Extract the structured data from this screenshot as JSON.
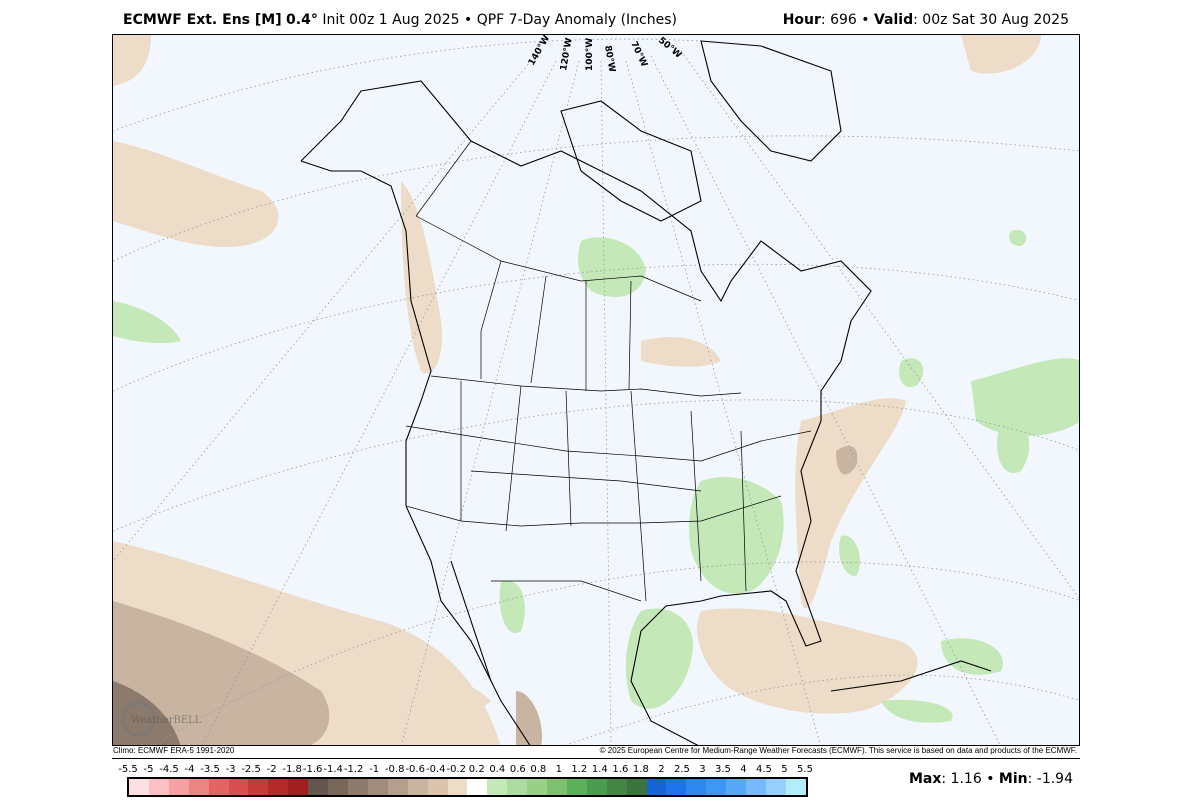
{
  "header": {
    "model": "ECMWF Ext. Ens [M]",
    "resolution": "0.4°",
    "init": "Init 00z 1 Aug 2025",
    "separator": "•",
    "product": "QPF 7-Day Anomaly (Inches)",
    "hour_label": "Hour",
    "hour_value": ": 696",
    "valid_label": "Valid",
    "valid_value": ": 00z Sat 30 Aug 2025"
  },
  "map": {
    "background_color": "#f2f7fe",
    "longitude_labels": [
      "140°W",
      "120°W",
      "100°W",
      "80°W",
      "70°W",
      "50°W"
    ],
    "watermark": "WeatherBELL"
  },
  "footer": {
    "climo": "Climo: ECMWF ERA-5 1991-2020",
    "copyright": "© 2025 European Centre for Medium-Range Weather Forecasts (ECMWF). This service is based on data and products of the ECMWF.",
    "max_label": "Max",
    "max_value": ": 1.16",
    "min_label": "Min",
    "min_value": ": -1.94"
  },
  "colorbar": {
    "labels": [
      "-5.5",
      "-5",
      "-4.5",
      "-4",
      "-3.5",
      "-3",
      "-2.5",
      "-2",
      "-1.8",
      "-1.6",
      "-1.4",
      "-1.2",
      "-1",
      "-0.8",
      "-0.6",
      "-0.4",
      "-0.2",
      "0.2",
      "0.4",
      "0.6",
      "0.8",
      "1",
      "1.2",
      "1.4",
      "1.6",
      "1.8",
      "2",
      "2.5",
      "3",
      "3.5",
      "4",
      "4.5",
      "5",
      "5.5"
    ],
    "colors": [
      "#fde0e4",
      "#fbc0c5",
      "#f4a0a4",
      "#ec8484",
      "#e46464",
      "#d84e4e",
      "#c83a3a",
      "#b42a2a",
      "#a01e1e",
      "#64564e",
      "#78685c",
      "#8c7a6c",
      "#a08c7c",
      "#b49e8c",
      "#c8b4a0",
      "#dcc4ac",
      "#ecdcc8",
      "#ffffff",
      "#c4e8b8",
      "#aedca0",
      "#98d088",
      "#7cc070",
      "#5cb05c",
      "#4c9c50",
      "#448444",
      "#3c7440",
      "#1464d4",
      "#1c74ec",
      "#2c88f0",
      "#3c98f4",
      "#58a8f8",
      "#78b8fc",
      "#98d0fc",
      "#b4ecf8"
    ]
  }
}
